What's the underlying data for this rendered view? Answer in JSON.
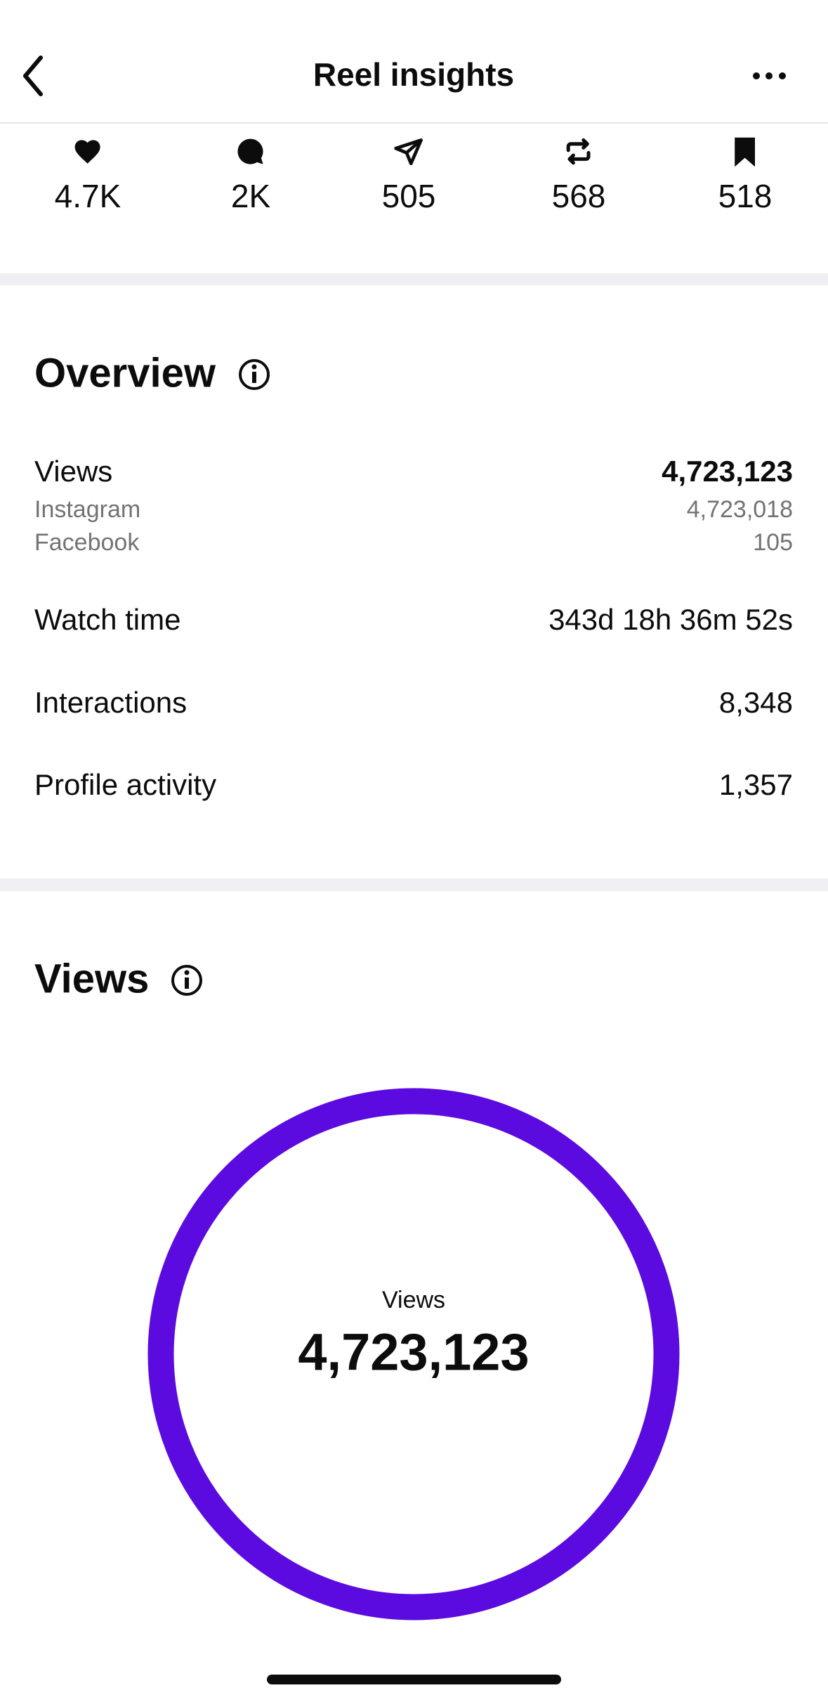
{
  "header": {
    "title": "Reel insights"
  },
  "stats": [
    "4.7K",
    "2K",
    "505",
    "568",
    "518"
  ],
  "overview": {
    "title": "Overview",
    "rows": [
      {
        "label": "Views",
        "value": "4,723,123",
        "breakdown": [
          {
            "label": "Instagram",
            "value": "4,723,018"
          },
          {
            "label": "Facebook",
            "value": "105"
          }
        ]
      },
      {
        "label": "Watch time",
        "value": "343d 18h 36m 52s"
      },
      {
        "label": "Interactions",
        "value": "8,348"
      },
      {
        "label": "Profile activity",
        "value": "1,357"
      }
    ]
  },
  "views": {
    "title": "Views",
    "label": "Views",
    "total": "4,723,123"
  }
}
